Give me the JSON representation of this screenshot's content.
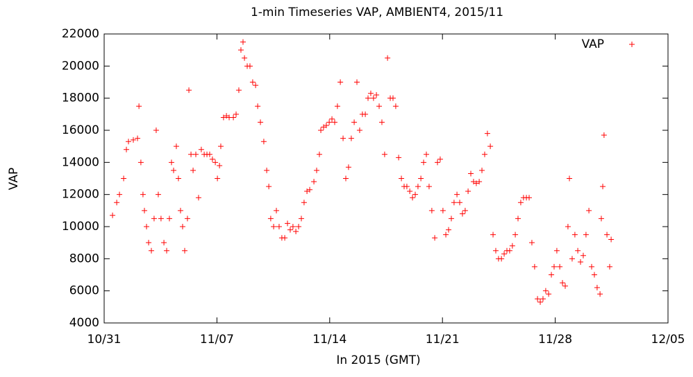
{
  "chart_data": {
    "type": "scatter",
    "title": "1-min Timeseries VAP, AMBIENT4, 2015/11",
    "x_label": "In 2015 (GMT)",
    "y_label": "VAP",
    "legend": "top-right",
    "xlim": [
      0,
      35
    ],
    "xticks": [
      {
        "value": 0,
        "label": "10/31"
      },
      {
        "value": 7,
        "label": "11/07"
      },
      {
        "value": 14,
        "label": "11/14"
      },
      {
        "value": 21,
        "label": "11/21"
      },
      {
        "value": 28,
        "label": "11/28"
      },
      {
        "value": 35,
        "label": "12/05"
      }
    ],
    "ylim": [
      4000,
      22000
    ],
    "yticks": [
      4000,
      6000,
      8000,
      10000,
      12000,
      14000,
      16000,
      18000,
      20000,
      22000
    ],
    "series": [
      {
        "name": "VAP",
        "color": "#ff0000",
        "x": [
          0.52,
          0.78,
          0.95,
          1.21,
          1.38,
          1.51,
          1.81,
          2.07,
          2.16,
          2.28,
          2.41,
          2.5,
          2.63,
          2.76,
          2.93,
          3.1,
          3.23,
          3.36,
          3.53,
          3.71,
          3.88,
          4.05,
          4.18,
          4.31,
          4.48,
          4.61,
          4.74,
          4.87,
          5.0,
          5.17,
          5.26,
          5.39,
          5.52,
          5.69,
          5.86,
          6.03,
          6.21,
          6.38,
          6.55,
          6.72,
          6.9,
          7.03,
          7.16,
          7.24,
          7.41,
          7.59,
          7.76,
          8.02,
          8.19,
          8.36,
          8.49,
          8.62,
          8.71,
          8.88,
          9.05,
          9.22,
          9.4,
          9.53,
          9.7,
          9.91,
          10.09,
          10.22,
          10.34,
          10.52,
          10.69,
          10.86,
          11.03,
          11.21,
          11.38,
          11.55,
          11.72,
          11.9,
          12.07,
          12.24,
          12.41,
          12.59,
          12.76,
          13.02,
          13.19,
          13.36,
          13.45,
          13.62,
          13.79,
          13.97,
          14.14,
          14.31,
          14.48,
          14.66,
          14.83,
          15.0,
          15.17,
          15.34,
          15.52,
          15.69,
          15.86,
          16.03,
          16.21,
          16.38,
          16.55,
          16.72,
          16.9,
          17.07,
          17.24,
          17.41,
          17.59,
          17.76,
          17.93,
          18.1,
          18.28,
          18.45,
          18.62,
          18.79,
          18.97,
          19.14,
          19.31,
          19.48,
          19.66,
          19.83,
          20.0,
          20.17,
          20.34,
          20.52,
          20.69,
          20.86,
          21.03,
          21.21,
          21.38,
          21.55,
          21.72,
          21.9,
          22.07,
          22.24,
          22.41,
          22.59,
          22.76,
          22.93,
          23.1,
          23.28,
          23.45,
          23.62,
          23.79,
          23.97,
          24.14,
          24.31,
          24.48,
          24.66,
          24.83,
          25.0,
          25.17,
          25.34,
          25.52,
          25.69,
          25.86,
          26.03,
          26.21,
          26.38,
          26.55,
          26.72,
          26.9,
          27.07,
          27.24,
          27.41,
          27.59,
          27.76,
          27.93,
          28.1,
          28.28,
          28.45,
          28.62,
          28.79,
          28.88,
          29.05,
          29.22,
          29.4,
          29.57,
          29.74,
          29.91,
          30.09,
          30.26,
          30.43,
          30.6,
          30.78,
          30.86,
          30.95,
          31.03,
          31.21,
          31.38,
          31.47
        ],
        "values": [
          10700,
          11500,
          12000,
          13000,
          14800,
          15300,
          15400,
          15500,
          17500,
          14000,
          12000,
          11000,
          10000,
          9000,
          8500,
          10500,
          16000,
          12000,
          10500,
          9000,
          8500,
          10500,
          14000,
          13500,
          15000,
          13000,
          11000,
          10000,
          8500,
          10500,
          18500,
          14500,
          13500,
          14500,
          11800,
          14800,
          14500,
          14500,
          14500,
          14200,
          14000,
          13000,
          13800,
          15000,
          16800,
          16900,
          16800,
          16800,
          17000,
          18500,
          21000,
          21500,
          20500,
          20000,
          20000,
          19000,
          18800,
          17500,
          16500,
          15300,
          13500,
          12500,
          10500,
          10000,
          11000,
          10000,
          9300,
          9300,
          10200,
          9800,
          10000,
          9700,
          10000,
          10500,
          11500,
          12200,
          12300,
          12800,
          13500,
          14500,
          16000,
          16200,
          16300,
          16500,
          16700,
          16500,
          17500,
          19000,
          15500,
          13000,
          13700,
          15500,
          16500,
          19000,
          16000,
          17000,
          17000,
          18000,
          18300,
          18000,
          18200,
          17500,
          16500,
          14500,
          20500,
          18000,
          18000,
          17500,
          14300,
          13000,
          12500,
          12500,
          12200,
          11800,
          12000,
          12500,
          13000,
          14000,
          14500,
          12500,
          11000,
          9300,
          14000,
          14200,
          11000,
          9500,
          9800,
          10500,
          11500,
          12000,
          11500,
          10800,
          11000,
          12200,
          13300,
          12800,
          12700,
          12800,
          13500,
          14500,
          15800,
          15000,
          9500,
          8500,
          8000,
          8000,
          8300,
          8500,
          8500,
          8800,
          9500,
          10500,
          11500,
          11800,
          11800,
          11800,
          9000,
          7500,
          5500,
          5300,
          5500,
          6000,
          5800,
          7000,
          7500,
          8500,
          7500,
          6500,
          6300,
          10000,
          13000,
          8000,
          9500,
          8500,
          7800,
          8200,
          9500,
          11000,
          7500,
          7000,
          6200,
          5800,
          10500,
          12500,
          15700,
          9500,
          7500,
          9200
        ]
      }
    ]
  }
}
